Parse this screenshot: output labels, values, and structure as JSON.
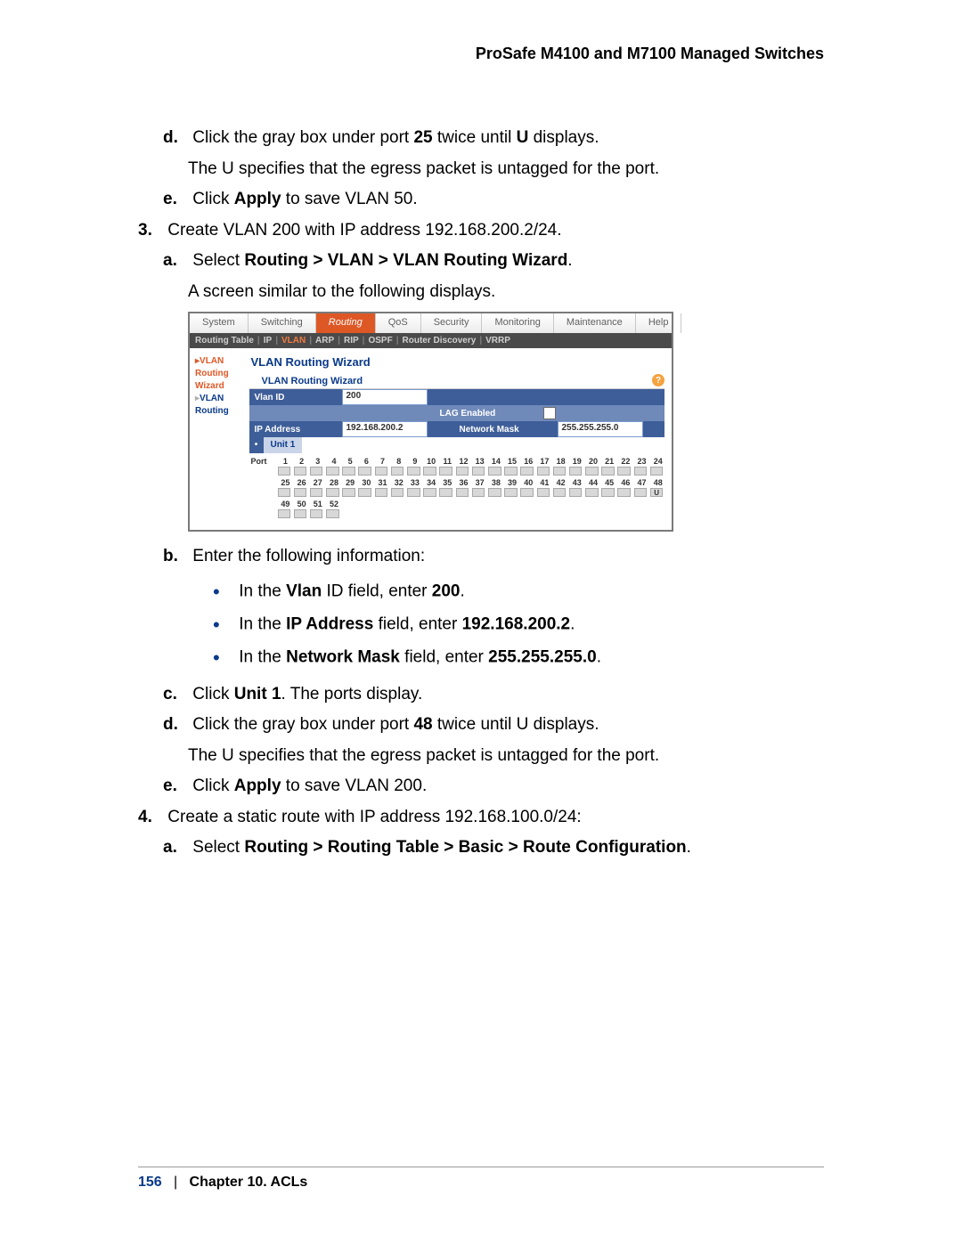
{
  "header": "ProSafe M4100 and M7100 Managed Switches",
  "steps": {
    "d1": {
      "letter": "d.",
      "t1": "Click the gray box under port ",
      "b1": "25",
      "t2": " twice until ",
      "b2": "U",
      "t3": " displays.",
      "sub": "The U specifies that the egress packet is untagged for the port."
    },
    "e1": {
      "letter": "e.",
      "t1": "Click ",
      "b1": "Apply",
      "t2": " to save VLAN 50."
    },
    "s3": {
      "num": "3.",
      "text": "Create VLAN 200 with IP address 192.168.200.2/24."
    },
    "a3": {
      "letter": "a.",
      "t1": "Select ",
      "b1": "Routing > VLAN > VLAN Routing Wizard",
      "t2": ".",
      "sub": "A screen similar to the following displays."
    },
    "b3": {
      "letter": "b.",
      "text": "Enter the following information:"
    },
    "bul1": {
      "t1": "In the ",
      "b1": "Vlan",
      "t2": " ID field, enter ",
      "b2": "200",
      "t3": "."
    },
    "bul2": {
      "t1": "In the ",
      "b1": "IP Address",
      "t2": " field, enter ",
      "b2": "192.168.200.2",
      "t3": "."
    },
    "bul3": {
      "t1": "In the ",
      "b1": "Network Mask",
      "t2": " field, enter ",
      "b2": "255.255.255.0",
      "t3": "."
    },
    "c3": {
      "letter": "c.",
      "t1": "Click ",
      "b1": "Unit 1",
      "t2": ". The ports display."
    },
    "d3": {
      "letter": "d.",
      "t1": "Click the gray box under port ",
      "b1": "48",
      "t2": " twice until U displays.",
      "sub": "The U specifies that the egress packet is untagged for the port."
    },
    "e3": {
      "letter": "e.",
      "t1": "Click ",
      "b1": "Apply",
      "t2": " to save VLAN 200."
    },
    "s4": {
      "num": "4.",
      "text": "Create a static route with IP address 192.168.100.0/24:"
    },
    "a4": {
      "letter": "a.",
      "t1": "Select ",
      "b1": "Routing > Routing Table > Basic > Route Configuration",
      "t2": "."
    }
  },
  "shot": {
    "tabs1": [
      "System",
      "Switching",
      "Routing",
      "QoS",
      "Security",
      "Monitoring",
      "Maintenance",
      "Help"
    ],
    "tabs1_active": 2,
    "tabs2": [
      {
        "t": "Routing Table",
        "hl": false
      },
      {
        "t": "IP",
        "hl": false
      },
      {
        "t": "VLAN",
        "hl": true
      },
      {
        "t": "ARP",
        "hl": false
      },
      {
        "t": "RIP",
        "hl": false
      },
      {
        "t": "OSPF",
        "hl": false
      },
      {
        "t": "Router Discovery",
        "hl": false
      },
      {
        "t": "VRRP",
        "hl": false
      }
    ],
    "side": [
      {
        "t": "VLAN Routing Wizard",
        "sel": true
      },
      {
        "t": "VLAN Routing",
        "sel": false
      }
    ],
    "title": "VLAN Routing Wizard",
    "subtitle": "VLAN Routing Wizard",
    "fields": {
      "vlan_label": "Vlan ID",
      "vlan_val": "200",
      "lag_label": "LAG Enabled",
      "ip_label": "IP Address",
      "ip_val": "192.168.200.2",
      "mask_label": "Network Mask",
      "mask_val": "255.255.255.0",
      "unit": "Unit 1",
      "port_label": "Port"
    },
    "port_row1": [
      1,
      2,
      3,
      4,
      5,
      6,
      7,
      8,
      9,
      10,
      11,
      12,
      13,
      14,
      15,
      16,
      17,
      18,
      19,
      20,
      21,
      22,
      23,
      24
    ],
    "port_row2": [
      25,
      26,
      27,
      28,
      29,
      30,
      31,
      32,
      33,
      34,
      35,
      36,
      37,
      38,
      39,
      40,
      41,
      42,
      43,
      44,
      45,
      46,
      47,
      48
    ],
    "port_row3": [
      49,
      50,
      51,
      52
    ],
    "u_port": 48,
    "colors": {
      "orange": "#de5826",
      "navy": "#3e5e99",
      "navy2": "#6f89b9",
      "blue_text": "#0a3a8a"
    }
  },
  "footer": {
    "page": "156",
    "sep": "|",
    "chapter": "Chapter 10.  ACLs"
  }
}
